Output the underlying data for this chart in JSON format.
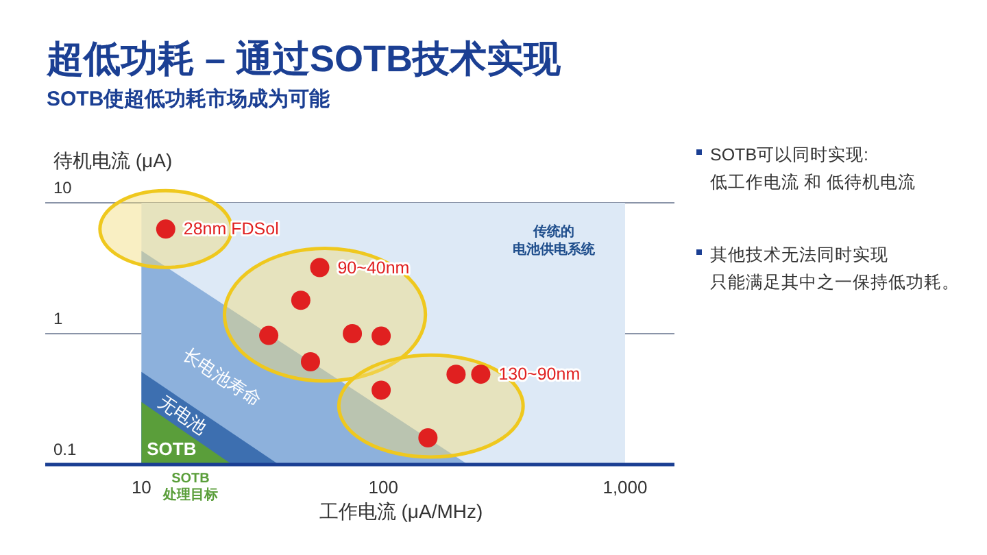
{
  "chart_data": {
    "type": "scatter",
    "title": "超低功耗 – 通过SOTB技术实现",
    "subtitle": "SOTB使超低功耗市场成为可能",
    "xlabel": "工作电流 (μA/MHz)",
    "ylabel": "待机电流 (μA)",
    "log": "xy",
    "xlim": [
      4,
      1600
    ],
    "ylim": [
      0.1,
      10
    ],
    "xticks": [
      10,
      100,
      {
        "value": 1000,
        "label": "1,000"
      }
    ],
    "yticks": [
      0.1,
      1,
      10
    ],
    "grid": "y",
    "legend": false,
    "series": [
      {
        "type": "area",
        "name": "传统的电池供电系统",
        "color": "#dde9f6",
        "x": [
          10,
          1000
        ],
        "values": [
          10,
          10
        ]
      },
      {
        "type": "area",
        "name": "长电池寿命",
        "color": "#8db1dc",
        "x": [
          10,
          224
        ],
        "values": [
          4.3,
          0.1
        ]
      },
      {
        "type": "area",
        "name": "无电池",
        "color": "#3d6fb0",
        "x": [
          10,
          37
        ],
        "values": [
          0.51,
          0.1
        ]
      },
      {
        "type": "area",
        "name": "SOTB",
        "color": "#5a9e3a",
        "x": [
          10,
          23.7
        ],
        "values": [
          0.3,
          0.1
        ]
      },
      {
        "name": "28nm FDSol",
        "color": "#e02020",
        "marker": "circle",
        "x": [
          12.6
        ],
        "values": [
          6.3
        ]
      },
      {
        "name": "90~40nm",
        "color": "#e02020",
        "marker": "circle",
        "x": [
          54.6,
          45.6,
          33.6,
          74.5,
          98,
          50
        ],
        "values": [
          3.2,
          1.8,
          0.97,
          1.0,
          0.96,
          0.61
        ]
      },
      {
        "name": "130~90nm",
        "color": "#e02020",
        "marker": "circle",
        "x": [
          98,
          200,
          253,
          153
        ],
        "values": [
          0.37,
          0.49,
          0.49,
          0.16
        ]
      }
    ],
    "annotations": [
      "SOTB可以同时实现:",
      "低工作电流 和 低待机电流",
      "其他技术无法同时实现",
      "只能满足其中之一保持低功耗。",
      "SOTB",
      "处理目标"
    ]
  }
}
